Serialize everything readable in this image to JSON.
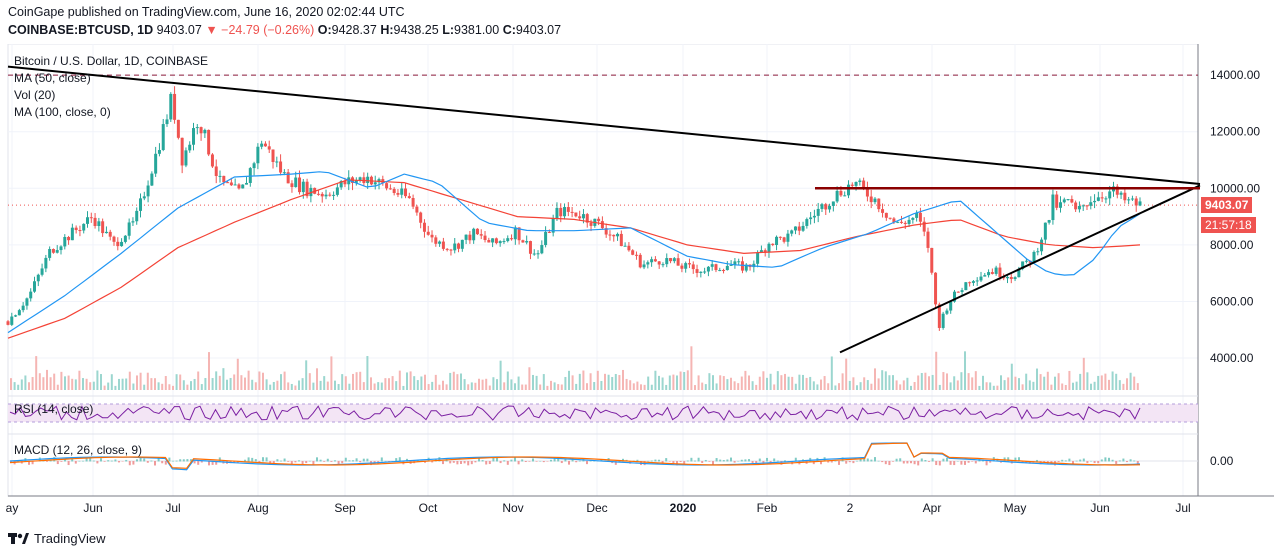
{
  "header": {
    "publisher_line": "CoinGape published on TradingView.com, June 16, 2020 02:02:44 UTC",
    "symbol": "COINBASE:BTCUSD, 1D",
    "last": "9403.07",
    "change": "▼ −24.79 (−0.26%)",
    "o_label": "O:",
    "o_val": "9428.37",
    "h_label": "H:",
    "h_val": "9438.25",
    "l_label": "L:",
    "l_val": "9381.00",
    "c_label": "C:",
    "c_val": "9403.07"
  },
  "legend": {
    "title": "Bitcoin / U.S. Dollar, 1D, COINBASE",
    "ma50": "MA (50, close)",
    "vol": "Vol (20)",
    "ma100": "MA (100, close, 0)",
    "rsi": "RSI (14, close)",
    "macd": "MACD (12, 26, close, 9)"
  },
  "price_tags": {
    "last_price": "9403.07",
    "countdown": "21:57:18"
  },
  "footer": {
    "brand": "TradingView"
  },
  "colors": {
    "up": "#26a69a",
    "down": "#ef5350",
    "ma50": "#2196f3",
    "ma100": "#f44336",
    "trendline": "#000000",
    "resistance": "#8b0000",
    "rsi": "#7b1fa2",
    "macd": "#2196f3",
    "signal": "#ff6d00"
  },
  "chart_data": {
    "type": "candlestick",
    "title": "Bitcoin / U.S. Dollar, 1D, COINBASE",
    "y_ticks": [
      "14000.00",
      "12000.00",
      "10000.00",
      "8000.00",
      "6000.00",
      "4000.00"
    ],
    "ylim": [
      2800,
      15100
    ],
    "macd_tick": "0.00",
    "x_labels": [
      "ay",
      "Jun",
      "Jul",
      "Aug",
      "Sep",
      "Oct",
      "Nov",
      "Dec",
      "2020",
      "Feb",
      "2",
      "Apr",
      "May",
      "Jun",
      "Jul"
    ],
    "resistance_level": 10000,
    "dashed_level": 14000,
    "last_price": 9403.07,
    "price_path": [
      [
        0,
        5300
      ],
      [
        0.02,
        6200
      ],
      [
        0.04,
        7800
      ],
      [
        0.06,
        8400
      ],
      [
        0.08,
        9000
      ],
      [
        0.1,
        8000
      ],
      [
        0.12,
        8800
      ],
      [
        0.14,
        11200
      ],
      [
        0.155,
        13200
      ],
      [
        0.165,
        11000
      ],
      [
        0.18,
        12500
      ],
      [
        0.2,
        10200
      ],
      [
        0.22,
        9800
      ],
      [
        0.24,
        11700
      ],
      [
        0.26,
        10500
      ],
      [
        0.28,
        10000
      ],
      [
        0.3,
        9800
      ],
      [
        0.32,
        10200
      ],
      [
        0.34,
        10400
      ],
      [
        0.36,
        10000
      ],
      [
        0.38,
        9600
      ],
      [
        0.4,
        8200
      ],
      [
        0.42,
        7900
      ],
      [
        0.44,
        8400
      ],
      [
        0.46,
        8000
      ],
      [
        0.48,
        8500
      ],
      [
        0.5,
        7600
      ],
      [
        0.52,
        9200
      ],
      [
        0.54,
        9100
      ],
      [
        0.56,
        8700
      ],
      [
        0.58,
        8100
      ],
      [
        0.6,
        7300
      ],
      [
        0.62,
        7500
      ],
      [
        0.64,
        7200
      ],
      [
        0.66,
        7100
      ],
      [
        0.68,
        7300
      ],
      [
        0.7,
        7200
      ],
      [
        0.72,
        8100
      ],
      [
        0.74,
        8300
      ],
      [
        0.76,
        9000
      ],
      [
        0.78,
        9700
      ],
      [
        0.8,
        10200
      ],
      [
        0.82,
        9600
      ],
      [
        0.84,
        8700
      ],
      [
        0.86,
        9000
      ],
      [
        0.87,
        8000
      ],
      [
        0.88,
        5100
      ],
      [
        0.89,
        6000
      ],
      [
        0.91,
        6800
      ],
      [
        0.93,
        7100
      ],
      [
        0.95,
        6900
      ],
      [
        0.97,
        7600
      ],
      [
        0.985,
        9000
      ],
      [
        1.0,
        9700
      ]
    ],
    "price_path_2": [
      [
        0,
        9700
      ],
      [
        0.1,
        9300
      ],
      [
        0.2,
        9600
      ],
      [
        0.3,
        9100
      ],
      [
        0.4,
        9500
      ],
      [
        0.5,
        9700
      ],
      [
        0.6,
        9800
      ],
      [
        0.7,
        9900
      ],
      [
        0.8,
        9600
      ],
      [
        0.9,
        9500
      ],
      [
        1.0,
        9400
      ]
    ],
    "ma50_path": [
      [
        0,
        4900
      ],
      [
        0.05,
        6200
      ],
      [
        0.1,
        7700
      ],
      [
        0.15,
        9300
      ],
      [
        0.2,
        10400
      ],
      [
        0.25,
        10500
      ],
      [
        0.28,
        10600
      ],
      [
        0.32,
        10000
      ],
      [
        0.35,
        10500
      ],
      [
        0.38,
        10200
      ],
      [
        0.42,
        8800
      ],
      [
        0.46,
        8500
      ],
      [
        0.5,
        8500
      ],
      [
        0.55,
        8600
      ],
      [
        0.6,
        7600
      ],
      [
        0.64,
        7300
      ],
      [
        0.68,
        7200
      ],
      [
        0.72,
        7900
      ],
      [
        0.76,
        8400
      ],
      [
        0.8,
        9100
      ],
      [
        0.84,
        9600
      ],
      [
        0.86,
        8900
      ],
      [
        0.88,
        8200
      ],
      [
        0.9,
        7500
      ],
      [
        0.92,
        7000
      ],
      [
        0.94,
        6900
      ],
      [
        0.96,
        7500
      ],
      [
        0.98,
        8600
      ],
      [
        1.0,
        9100
      ]
    ],
    "ma100_path": [
      [
        0,
        4700
      ],
      [
        0.05,
        5400
      ],
      [
        0.1,
        6500
      ],
      [
        0.15,
        7900
      ],
      [
        0.2,
        8800
      ],
      [
        0.25,
        9600
      ],
      [
        0.3,
        10300
      ],
      [
        0.35,
        10200
      ],
      [
        0.4,
        9600
      ],
      [
        0.45,
        9000
      ],
      [
        0.5,
        8900
      ],
      [
        0.55,
        8600
      ],
      [
        0.6,
        8000
      ],
      [
        0.65,
        7700
      ],
      [
        0.7,
        7800
      ],
      [
        0.75,
        8300
      ],
      [
        0.8,
        8700
      ],
      [
        0.84,
        8900
      ],
      [
        0.88,
        8300
      ],
      [
        0.92,
        8000
      ],
      [
        0.96,
        7900
      ],
      [
        1.0,
        8000
      ]
    ]
  }
}
